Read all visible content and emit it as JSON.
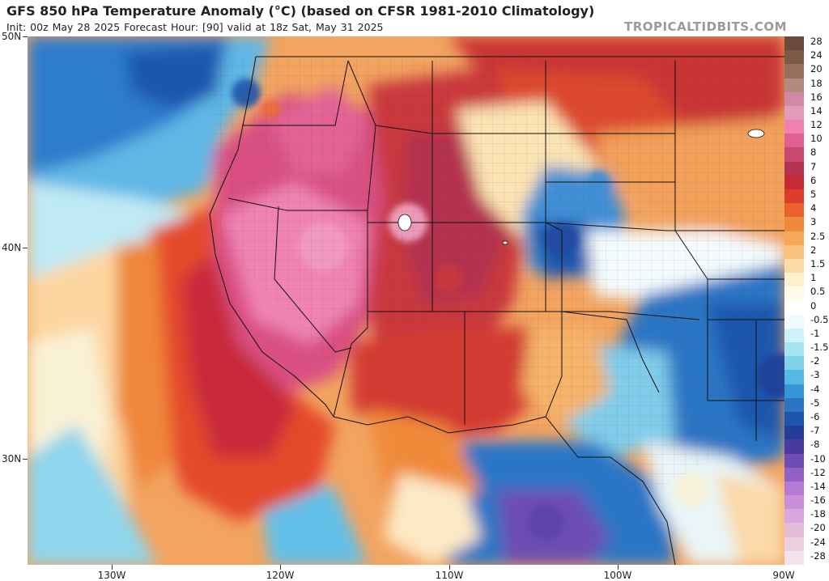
{
  "header": {
    "title": "GFS 850 hPa Temperature Anomaly (°C) (based on CFSR 1981-2010 Climatology)",
    "subtitle": "Init: 00z May 28 2025   Forecast Hour: [90]   valid at 18z Sat, May 31 2025",
    "brand": "TROPICALTIDBITS.COM"
  },
  "axes": {
    "lat_labels": [
      "50N",
      "40N",
      "30N"
    ],
    "lon_labels": [
      "130W",
      "120W",
      "110W",
      "100W",
      "90W"
    ]
  },
  "legend": {
    "items": [
      {
        "label": "28",
        "color": "#6b4c3b"
      },
      {
        "label": "24",
        "color": "#7d5a48"
      },
      {
        "label": "20",
        "color": "#96705f"
      },
      {
        "label": "18",
        "color": "#b08b7e"
      },
      {
        "label": "16",
        "color": "#cf8aa6"
      },
      {
        "label": "14",
        "color": "#e39bbb"
      },
      {
        "label": "12",
        "color": "#ef82b0"
      },
      {
        "label": "10",
        "color": "#e0608f"
      },
      {
        "label": "8",
        "color": "#c9486e"
      },
      {
        "label": "7",
        "color": "#b4314f"
      },
      {
        "label": "6",
        "color": "#c62a35"
      },
      {
        "label": "5",
        "color": "#dc3d2b"
      },
      {
        "label": "4",
        "color": "#e9612c"
      },
      {
        "label": "3",
        "color": "#f08a3b"
      },
      {
        "label": "2.5",
        "color": "#f5a85a"
      },
      {
        "label": "2",
        "color": "#f8c37f"
      },
      {
        "label": "1.5",
        "color": "#fbdca7"
      },
      {
        "label": "1",
        "color": "#fdf0cc"
      },
      {
        "label": "0.5",
        "color": "#fffbe8"
      },
      {
        "label": "0",
        "color": "#ffffff"
      },
      {
        "label": "-0.5",
        "color": "#f0fbfd"
      },
      {
        "label": "-1",
        "color": "#cdf2f7"
      },
      {
        "label": "-1.5",
        "color": "#a5e5f0"
      },
      {
        "label": "-2",
        "color": "#7fd4ea"
      },
      {
        "label": "-3",
        "color": "#54b9e3"
      },
      {
        "label": "-4",
        "color": "#3797d6"
      },
      {
        "label": "-5",
        "color": "#2a76c5"
      },
      {
        "label": "-6",
        "color": "#1f56ad"
      },
      {
        "label": "-7",
        "color": "#263d98"
      },
      {
        "label": "-8",
        "color": "#4a3a9f"
      },
      {
        "label": "-10",
        "color": "#6d4db3"
      },
      {
        "label": "-12",
        "color": "#9361c6"
      },
      {
        "label": "-14",
        "color": "#b57ad6"
      },
      {
        "label": "-16",
        "color": "#c98fd9"
      },
      {
        "label": "-18",
        "color": "#d9a7dd"
      },
      {
        "label": "-20",
        "color": "#e3bdd9"
      },
      {
        "label": "-24",
        "color": "#ebcfe0"
      },
      {
        "label": "-28",
        "color": "#f3e3ec"
      }
    ]
  },
  "map": {
    "ocean_base": "#3a8fd6",
    "land_base": "#e06a3a"
  }
}
